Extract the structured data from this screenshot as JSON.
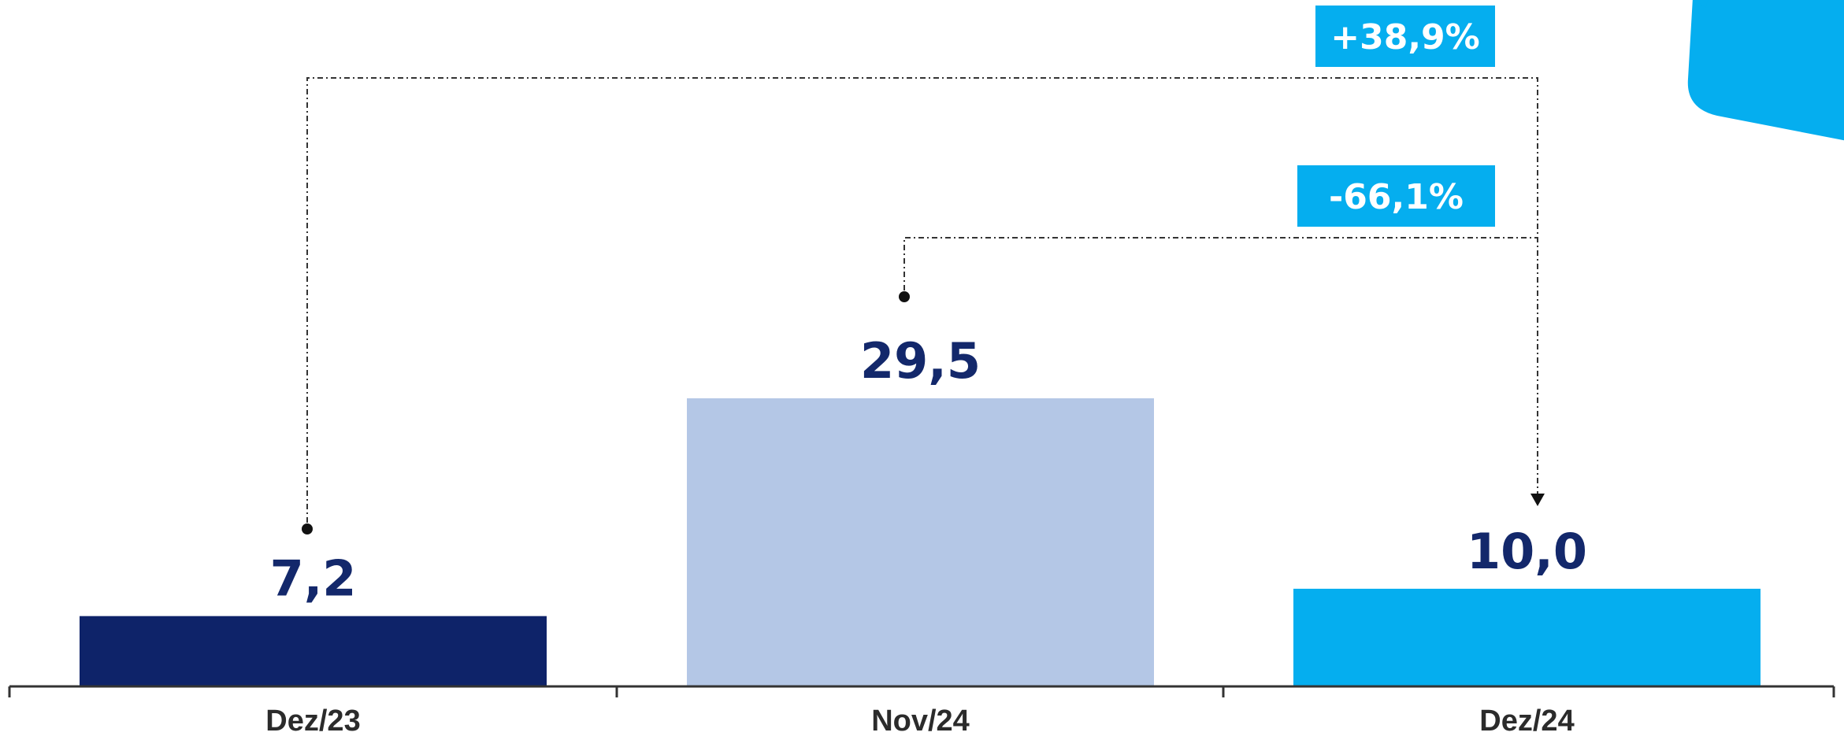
{
  "chart_data": {
    "type": "bar",
    "categories": [
      "Dez/23",
      "Nov/24",
      "Dez/24"
    ],
    "values": [
      7.2,
      29.5,
      10.0
    ],
    "value_labels": [
      "7,2",
      "29,5",
      "10,0"
    ],
    "bar_colors": [
      "#0e2369",
      "#b4c7e6",
      "#05aeef"
    ],
    "value_label_color": "#13286b",
    "ylim": [
      0,
      29.5
    ],
    "grid": false,
    "legend": "none",
    "title": "",
    "xlabel": "",
    "ylabel": "",
    "annotations": [
      {
        "text": "+38,9%",
        "from": "Dez/23",
        "to": "Dez/24"
      },
      {
        "text": "-66,1%",
        "from": "Nov/24",
        "to": "Dez/24"
      }
    ]
  },
  "colors": {
    "accent": "#05aeef",
    "axis": "#333333"
  }
}
